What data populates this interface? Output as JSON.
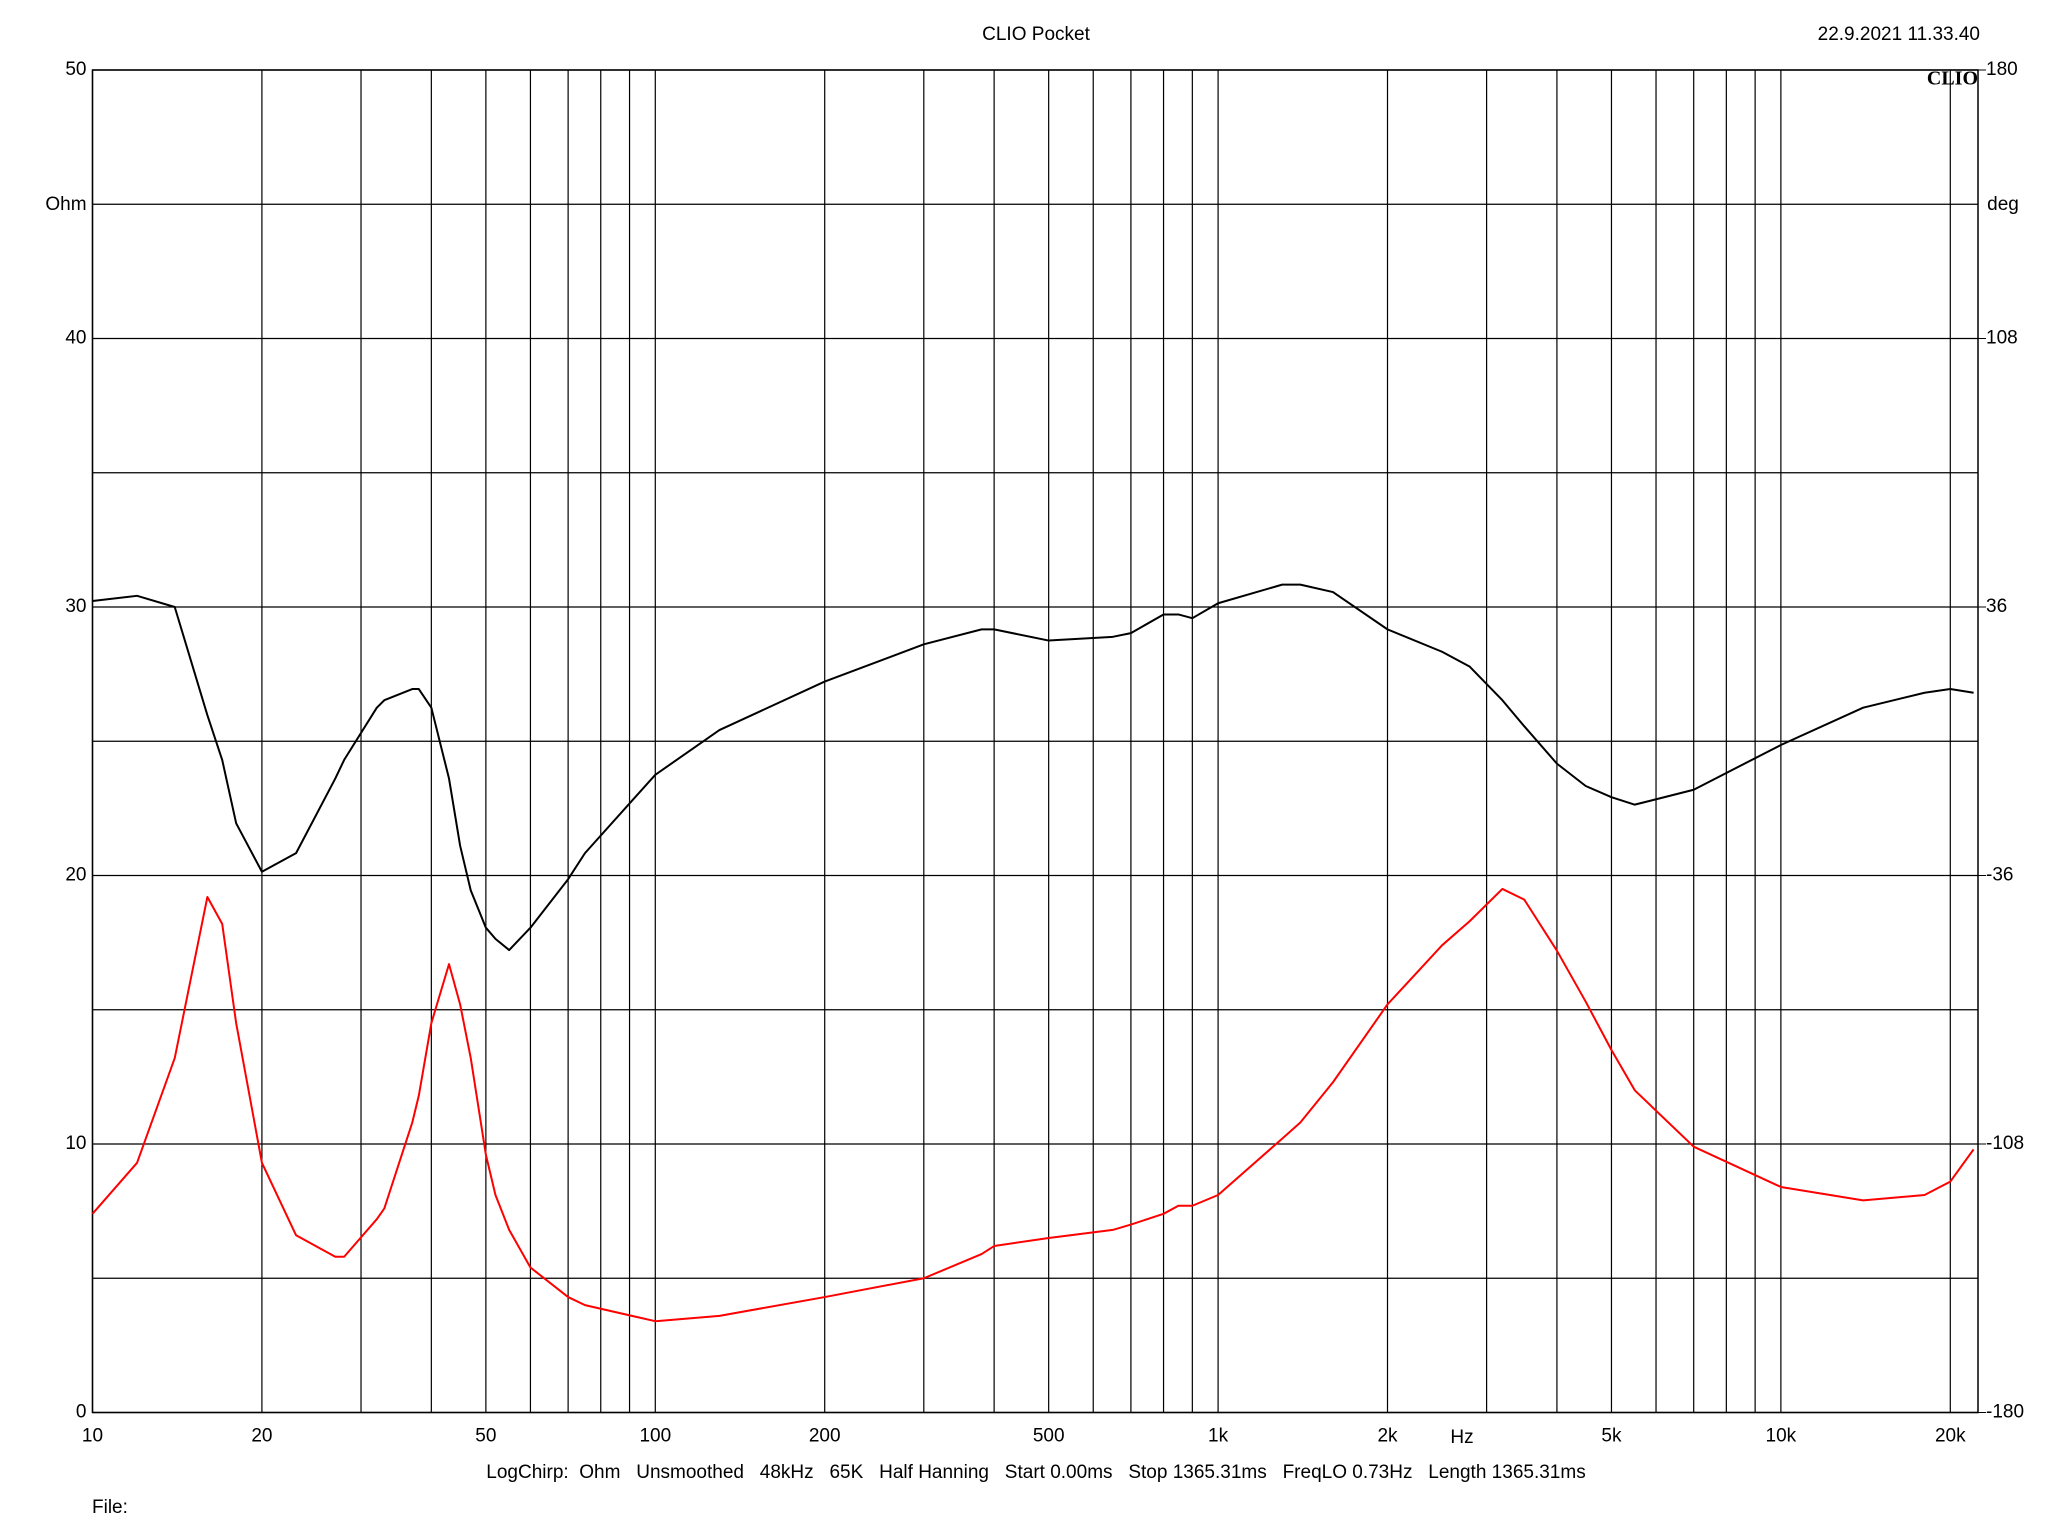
{
  "chart_data": {
    "type": "line",
    "title": "CLIO Pocket",
    "timestamp": "22.9.2021 11.33.40",
    "logo": "CLIO",
    "ylabel": "Ohm",
    "y2label": "deg",
    "xlabel": "Hz",
    "footer": "LogChirp:  Ohm   Unsmoothed   48kHz   65K   Half Hanning   Start 0.00ms   Stop 1365.31ms   FreqLO 0.73Hz   Length 1365.31ms",
    "file_label": "File:",
    "xlog": true,
    "grid": true,
    "xlim": [
      10,
      22400
    ],
    "xticks": [
      10,
      20,
      50,
      100,
      200,
      500,
      {
        "value": 1000,
        "label": "1k"
      },
      {
        "value": 2000,
        "label": "2k"
      },
      {
        "value": 5000,
        "label": "5k"
      },
      {
        "value": 10000,
        "label": "10k"
      },
      {
        "value": 20000,
        "label": "20k"
      }
    ],
    "xminor_ticks": [
      30,
      40,
      60,
      70,
      80,
      90,
      300,
      400,
      600,
      700,
      800,
      900,
      3000,
      4000,
      6000,
      7000,
      8000,
      9000
    ],
    "ylim": [
      0,
      50
    ],
    "yticks": [
      0,
      10,
      20,
      30,
      40,
      50
    ],
    "yminor_ticks": [
      5,
      15,
      25,
      35,
      45
    ],
    "y2lim": [
      -180,
      180
    ],
    "y2ticks": [
      -180,
      -108,
      -36,
      36,
      108,
      180
    ],
    "x": [
      10,
      12,
      14,
      16,
      17,
      18,
      20,
      23,
      27,
      28,
      32,
      33,
      37,
      38,
      40,
      43,
      45,
      47,
      50,
      52,
      55,
      60,
      70,
      75,
      100,
      130,
      200,
      300,
      380,
      400,
      500,
      650,
      700,
      800,
      850,
      900,
      1000,
      1300,
      1400,
      1600,
      2000,
      2500,
      2800,
      3200,
      3500,
      4000,
      4500,
      5000,
      5500,
      7000,
      10000,
      14000,
      18000,
      20000,
      22000
    ],
    "series": [
      {
        "color": "#ff0000",
        "values": [
          7.4,
          9.3,
          13.2,
          19.2,
          18.2,
          14.5,
          9.3,
          6.6,
          5.8,
          5.8,
          7.2,
          7.6,
          10.8,
          11.8,
          14.5,
          16.7,
          15.2,
          13.2,
          9.6,
          8.1,
          6.8,
          5.4,
          4.3,
          4.0,
          3.4,
          3.6,
          4.3,
          5.0,
          5.9,
          6.2,
          6.5,
          6.8,
          7.0,
          7.4,
          7.7,
          7.7,
          8.1,
          10.2,
          10.8,
          12.3,
          15.2,
          17.4,
          18.3,
          19.5,
          19.1,
          17.2,
          15.3,
          13.5,
          12.0,
          9.9,
          8.4,
          7.9,
          8.1,
          8.6,
          9.8
        ]
      },
      {
        "color": "#000000",
        "axis": "y2",
        "values": [
          37.6,
          39,
          36,
          7,
          -5,
          -22,
          -35,
          -30,
          -10,
          -5,
          9,
          11,
          14,
          14,
          9,
          -10,
          -28,
          -40,
          -50,
          -53,
          -56,
          -50,
          -37,
          -30,
          -9,
          3,
          16,
          26,
          30,
          30,
          27,
          28,
          29,
          34,
          34,
          33,
          37,
          42,
          42,
          40,
          30,
          24,
          20,
          11,
          4,
          -6,
          -12,
          -15,
          -17,
          -13,
          -1,
          9,
          13,
          14,
          13
        ]
      }
    ]
  }
}
